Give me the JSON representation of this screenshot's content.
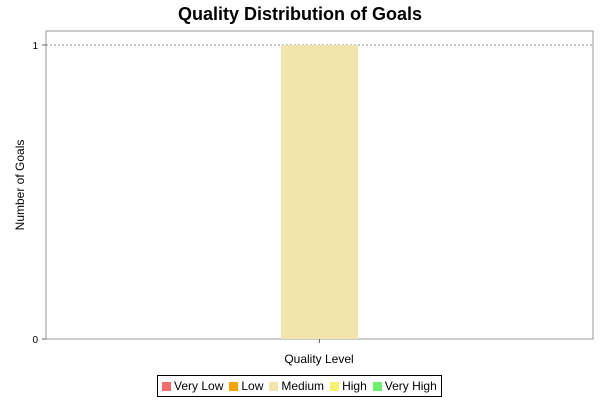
{
  "chart_data": {
    "type": "bar",
    "title": "Quality Distribution of Goals",
    "xlabel": "Quality Level",
    "ylabel": "Number of Goals",
    "ylim": [
      0,
      1
    ],
    "yticks": [
      "0",
      "1"
    ],
    "categories": [
      ""
    ],
    "series": [
      {
        "name": "Very Low",
        "color": "#f36d6d",
        "values": [
          0
        ]
      },
      {
        "name": "Low",
        "color": "#f5a300",
        "values": [
          0
        ]
      },
      {
        "name": "Medium",
        "color": "#f3e4ac",
        "values": [
          1
        ]
      },
      {
        "name": "High",
        "color": "#f6f272",
        "values": [
          0
        ]
      },
      {
        "name": "Very High",
        "color": "#6ef06e",
        "values": [
          0
        ]
      }
    ],
    "grid": "horizontal dashed at top tick",
    "legend": "bottom-center"
  }
}
